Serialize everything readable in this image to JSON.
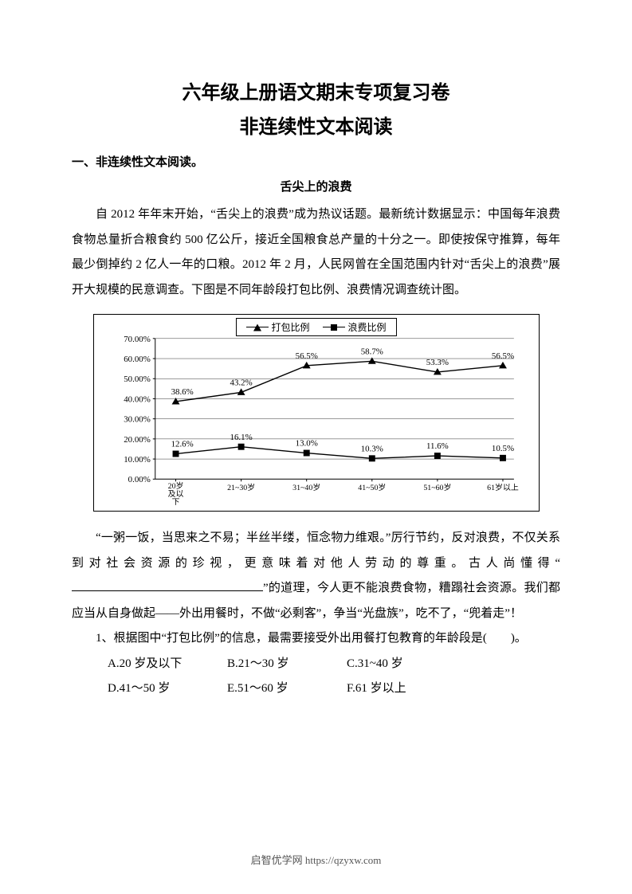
{
  "titles": {
    "main": "六年级上册语文期末专项复习卷",
    "sub": "非连续性文本阅读"
  },
  "section_heading": "一、非连续性文本阅读。",
  "article_title": "舌尖上的浪费",
  "paragraph1": "自 2012 年年末开始，“舌尖上的浪费”成为热议话题。最新统计数据显示：中国每年浪费食物总量折合粮食约 500 亿公斤，接近全国粮食总产量的十分之一。即使按保守推算，每年最少倒掉约 2 亿人一年的口粮。2012 年 2 月，人民网曾在全国范围内针对“舌尖上的浪费”展开大规模的民意调查。下图是不同年龄段打包比例、浪费情况调查统计图。",
  "chart": {
    "type": "line",
    "legend": {
      "series1_label": "打包比例",
      "series2_label": "浪费比例"
    },
    "x_labels": [
      "20岁及以下",
      "21~30岁",
      "31~40岁",
      "41~50岁",
      "51~60岁",
      "61岁以上"
    ],
    "y_ticks": [
      0,
      10,
      20,
      30,
      40,
      50,
      60,
      70
    ],
    "y_tick_labels": [
      "0.00%",
      "10.00%",
      "20.00%",
      "30.00%",
      "40.00%",
      "50.00%",
      "60.00%",
      "70.00%"
    ],
    "ylim": [
      0,
      70
    ],
    "series1": {
      "name": "打包比例",
      "marker": "triangle",
      "values": [
        38.6,
        43.2,
        56.5,
        58.7,
        53.3,
        56.5
      ],
      "value_labels": [
        "38.6%",
        "43.2%",
        "56.5%",
        "58.7%",
        "53.3%",
        "56.5%"
      ]
    },
    "series2": {
      "name": "浪费比例",
      "marker": "square",
      "values": [
        12.6,
        16.1,
        13.0,
        10.3,
        11.6,
        10.5
      ],
      "value_labels": [
        "12.6%",
        "16.1%",
        "13.0%",
        "10.3%",
        "11.6%",
        "10.5%"
      ]
    },
    "colors": {
      "line": "#000000",
      "background": "#ffffff",
      "grid": "#000000"
    },
    "line_width": 1.4,
    "marker_size": 8,
    "font_size_axis": 11,
    "font_size_value": 11
  },
  "paragraph2_pre": "“一粥一饭，当思来之不易；半丝半缕，恒念物力维艰。”厉行节约，反对浪费，不仅关系到对社会资源的珍视，更意味着对他人劳动的尊重。古人尚懂得“",
  "paragraph2_post": "”的道理，今人更不能浪费食物，糟蹋社会资源。我们都应当从自身做起——外出用餐时，不做“必剩客”，争当“光盘族”，吃不了，“兜着走”！",
  "question1": "1、根据图中“打包比例”的信息，最需要接受外出用餐打包教育的年龄段是(　　)。",
  "options": {
    "row1": {
      "a": "A.20 岁及以下",
      "b": "B.21～30 岁",
      "c": "C.31~40 岁"
    },
    "row2": {
      "d": "D.41～50 岁",
      "e": "E.51～60 岁",
      "f": "F.61 岁以上"
    }
  },
  "footer": "启智优学网 https://qzyxw.com"
}
